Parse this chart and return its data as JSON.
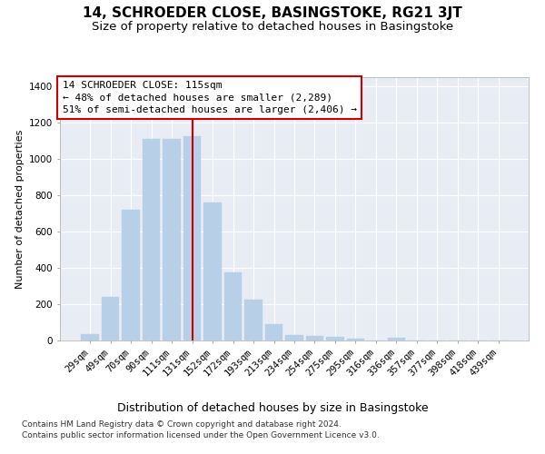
{
  "title": "14, SCHROEDER CLOSE, BASINGSTOKE, RG21 3JT",
  "subtitle": "Size of property relative to detached houses in Basingstoke",
  "xlabel": "Distribution of detached houses by size in Basingstoke",
  "ylabel": "Number of detached properties",
  "footer_line1": "Contains HM Land Registry data © Crown copyright and database right 2024.",
  "footer_line2": "Contains public sector information licensed under the Open Government Licence v3.0.",
  "categories": [
    "29sqm",
    "49sqm",
    "70sqm",
    "90sqm",
    "111sqm",
    "131sqm",
    "152sqm",
    "172sqm",
    "193sqm",
    "213sqm",
    "234sqm",
    "254sqm",
    "275sqm",
    "295sqm",
    "316sqm",
    "336sqm",
    "357sqm",
    "377sqm",
    "398sqm",
    "418sqm",
    "439sqm"
  ],
  "values": [
    35,
    238,
    720,
    1110,
    1110,
    1125,
    760,
    375,
    225,
    90,
    32,
    25,
    20,
    12,
    0,
    15,
    0,
    0,
    0,
    0,
    0
  ],
  "bar_color": "#b8cfe8",
  "bar_edge_color": "#b8cfe8",
  "background_color": "#e8edf5",
  "grid_color": "#ffffff",
  "vline_x": 5.0,
  "vline_color": "#cc0000",
  "annotation_line1": "14 SCHROEDER CLOSE: 115sqm",
  "annotation_line2": "← 48% of detached houses are smaller (2,289)",
  "annotation_line3": "51% of semi-detached houses are larger (2,406) →",
  "annotation_box_facecolor": "#ffffff",
  "annotation_box_edgecolor": "#cc0000",
  "ylim": [
    0,
    1450
  ],
  "yticks": [
    0,
    200,
    400,
    600,
    800,
    1000,
    1200,
    1400
  ],
  "title_fontsize": 11,
  "subtitle_fontsize": 9.5,
  "xlabel_fontsize": 9,
  "ylabel_fontsize": 8,
  "tick_fontsize": 7.5,
  "annotation_fontsize": 8,
  "footer_fontsize": 6.5
}
